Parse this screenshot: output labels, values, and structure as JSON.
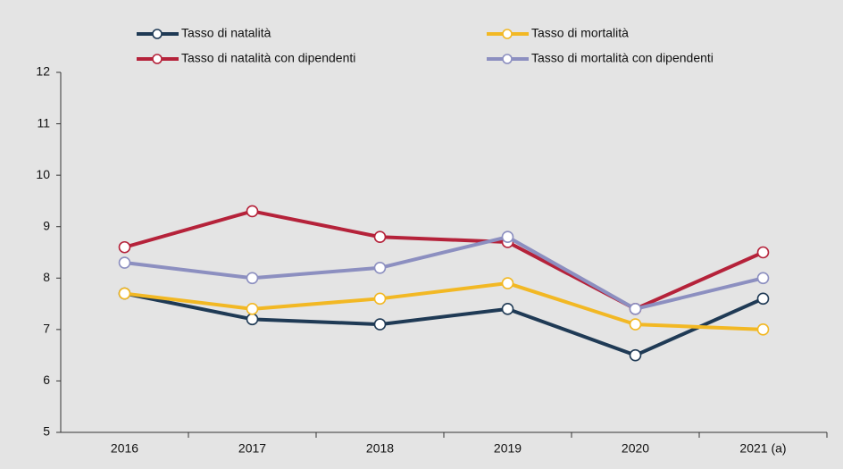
{
  "chart_data": {
    "type": "line",
    "categories": [
      "2016",
      "2017",
      "2018",
      "2019",
      "2020",
      "2021 (a)"
    ],
    "series": [
      {
        "name": "Tasso di natalità",
        "color": "#1f3a55",
        "values": [
          7.7,
          7.2,
          7.1,
          7.4,
          6.5,
          7.6
        ]
      },
      {
        "name": "Tasso di mortalità",
        "color": "#f2b824",
        "values": [
          7.7,
          7.4,
          7.6,
          7.9,
          7.1,
          7.0
        ]
      },
      {
        "name": "Tasso di natalità con dipendenti",
        "color": "#b5223a",
        "values": [
          8.6,
          9.3,
          8.8,
          8.7,
          7.4,
          8.5
        ]
      },
      {
        "name": "Tasso di mortalità con dipendenti",
        "color": "#8c8fc0",
        "values": [
          8.3,
          8.0,
          8.2,
          8.8,
          7.4,
          8.0
        ]
      }
    ],
    "ylim": [
      5,
      12
    ],
    "yticks": [
      5,
      6,
      7,
      8,
      9,
      10,
      11,
      12
    ],
    "grid": false,
    "legend": "top"
  }
}
